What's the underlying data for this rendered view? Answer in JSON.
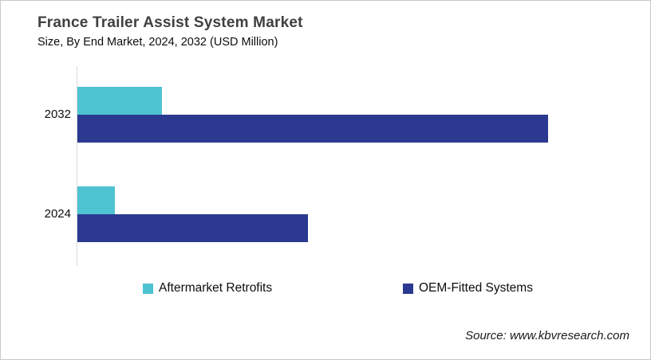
{
  "page": {
    "title": "France Trailer Assist System Market",
    "subtitle": "Size, By End Market, 2024, 2032 (USD Million)",
    "source": "Source: www.kbvresearch.com"
  },
  "colors": {
    "aftermarket_teal": "#4EC3D1",
    "oem_navy": "#2B3990",
    "title_text": "#404040",
    "axis_line": "#D9D9D9",
    "page_border": "#C9C9C9"
  },
  "chart_data": {
    "type": "bar",
    "orientation": "horizontal",
    "title": "France Trailer Assist System Market Size, By End Market, 2024, 2032 (USD Million)",
    "xlabel": "",
    "ylabel": "",
    "categories": [
      "2032",
      "2024"
    ],
    "series": [
      {
        "name": "Aftermarket Retrofits",
        "color": "#4EC3D1",
        "values": [
          18,
          8
        ]
      },
      {
        "name": "OEM-Fitted Systems",
        "color": "#2B3990",
        "values": [
          100,
          49
        ]
      }
    ],
    "value_axis_visible": false,
    "gridlines": false,
    "data_labels": false,
    "legend_position": "bottom",
    "note": "No numeric value axis or data labels shown in the chart; values are relative bar lengths normalized so the longest bar (OEM-Fitted Systems, 2032) = 100"
  },
  "legend": {
    "items": [
      {
        "label": "Aftermarket Retrofits",
        "color": "#4EC3D1"
      },
      {
        "label": "OEM-Fitted Systems",
        "color": "#2B3990"
      }
    ]
  }
}
